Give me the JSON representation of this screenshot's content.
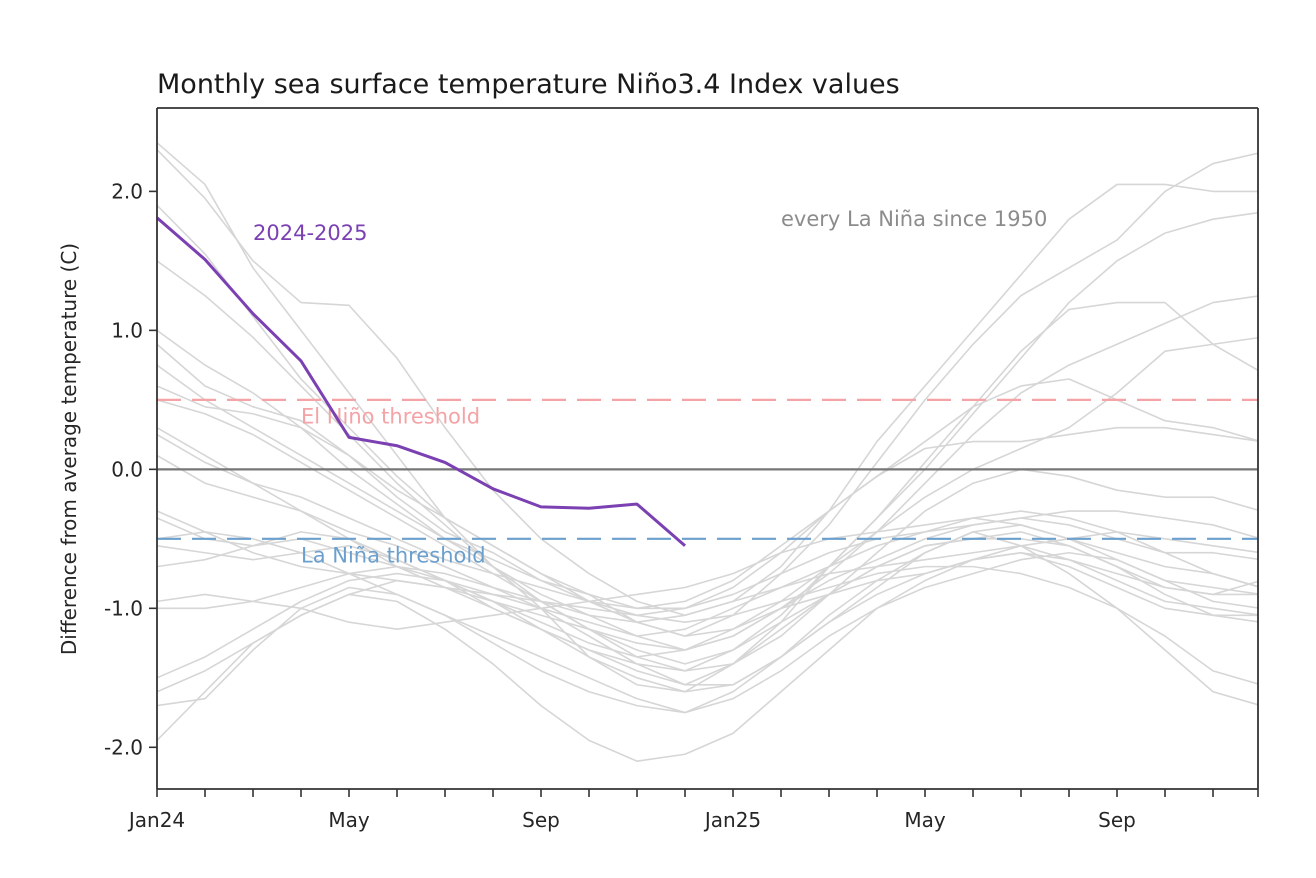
{
  "chart_data": {
    "type": "line",
    "title": "Monthly sea surface temperature Niño3.4 Index values",
    "xlabel": "",
    "ylabel": "Difference from average temperature (C)",
    "x": [
      "Jan24",
      "Feb24",
      "Mar24",
      "Apr24",
      "May24",
      "Jun24",
      "Jul24",
      "Aug24",
      "Sep24",
      "Oct24",
      "Nov24",
      "Dec24",
      "Jan25",
      "Feb25",
      "Mar25",
      "Apr25",
      "May25",
      "Jun25",
      "Jul25",
      "Aug25",
      "Sep25",
      "Oct25",
      "Nov25",
      "Dec25"
    ],
    "xtick_labels": [
      {
        "index": 0,
        "label": "Jan24"
      },
      {
        "index": 4,
        "label": "May"
      },
      {
        "index": 8,
        "label": "Sep"
      },
      {
        "index": 12,
        "label": "Jan25"
      },
      {
        "index": 16,
        "label": "May"
      },
      {
        "index": 20,
        "label": "Sep"
      }
    ],
    "xlim": [
      0,
      23
    ],
    "ylim": [
      -2.3,
      2.6
    ],
    "yticks": [
      {
        "value": 2.0,
        "label": "2.0"
      },
      {
        "value": 1.0,
        "label": "1.0"
      },
      {
        "value": 0.0,
        "label": "0.0"
      },
      {
        "value": -1.0,
        "label": "-1.0"
      },
      {
        "value": -2.0,
        "label": "-2.0"
      }
    ],
    "grid": false,
    "highlight_series": {
      "name": "2024-2025",
      "color": "#7b40b2",
      "values": [
        1.81,
        1.51,
        1.12,
        0.78,
        0.23,
        0.17,
        0.05,
        -0.14,
        -0.27,
        -0.28,
        -0.25,
        -0.55
      ]
    },
    "background_series_label": "every La Niña since 1950",
    "background_series_color": "#d6d6d6",
    "background_series": [
      {
        "name": "event-1",
        "values": [
          2.35,
          2.05,
          1.45,
          1.0,
          0.55,
          0.1,
          -0.35,
          -0.7,
          -1.0,
          -1.35,
          -1.55,
          -1.6,
          -1.4,
          -1.1,
          -0.7,
          -0.35,
          0.0,
          0.4,
          0.8,
          1.2,
          1.5,
          1.7,
          1.8,
          1.85
        ]
      },
      {
        "name": "event-2",
        "values": [
          2.3,
          1.95,
          1.5,
          1.2,
          1.18,
          0.8,
          0.3,
          -0.15,
          -0.5,
          -0.75,
          -0.95,
          -1.05,
          -0.95,
          -0.7,
          -0.3,
          0.2,
          0.6,
          1.0,
          1.4,
          1.8,
          2.05,
          2.05,
          2.0,
          2.0
        ]
      },
      {
        "name": "event-3",
        "values": [
          1.9,
          1.55,
          1.1,
          0.65,
          0.3,
          -0.05,
          -0.35,
          -0.55,
          -0.75,
          -0.95,
          -1.1,
          -1.2,
          -1.05,
          -0.75,
          -0.4,
          0.05,
          0.5,
          0.9,
          1.25,
          1.45,
          1.65,
          2.0,
          2.2,
          2.28
        ]
      },
      {
        "name": "event-4",
        "values": [
          1.5,
          1.25,
          0.95,
          0.6,
          0.25,
          -0.1,
          -0.4,
          -0.7,
          -0.95,
          -1.15,
          -1.3,
          -1.4,
          -1.3,
          -1.05,
          -0.7,
          -0.35,
          0.05,
          0.45,
          0.85,
          1.15,
          1.2,
          1.2,
          0.9,
          0.7
        ]
      },
      {
        "name": "event-5",
        "values": [
          1.0,
          0.75,
          0.55,
          0.3,
          0.0,
          -0.25,
          -0.5,
          -0.7,
          -0.9,
          -1.05,
          -1.2,
          -1.3,
          -1.2,
          -1.0,
          -0.75,
          -0.45,
          -0.1,
          0.25,
          0.55,
          0.75,
          0.9,
          1.05,
          1.2,
          1.25
        ]
      },
      {
        "name": "event-6",
        "values": [
          0.9,
          0.6,
          0.45,
          0.35,
          0.1,
          -0.2,
          -0.45,
          -0.6,
          -0.8,
          -0.95,
          -1.05,
          -1.0,
          -0.85,
          -0.6,
          -0.3,
          -0.05,
          0.2,
          0.45,
          0.6,
          0.65,
          0.5,
          0.35,
          0.3,
          0.2
        ]
      },
      {
        "name": "event-7",
        "values": [
          0.75,
          0.5,
          0.3,
          0.1,
          -0.1,
          -0.3,
          -0.5,
          -0.65,
          -0.8,
          -0.9,
          -1.0,
          -0.95,
          -0.8,
          -0.55,
          -0.3,
          -0.05,
          0.15,
          0.2,
          0.2,
          0.25,
          0.3,
          0.3,
          0.25,
          0.2
        ]
      },
      {
        "name": "event-8",
        "values": [
          0.6,
          0.45,
          0.4,
          0.3,
          0.1,
          -0.15,
          -0.35,
          -0.55,
          -0.75,
          -0.9,
          -1.1,
          -1.2,
          -1.15,
          -0.95,
          -0.7,
          -0.45,
          -0.2,
          0.0,
          0.15,
          0.3,
          0.55,
          0.85,
          0.9,
          0.95
        ]
      },
      {
        "name": "event-9",
        "values": [
          0.5,
          0.4,
          0.25,
          0.05,
          -0.15,
          -0.35,
          -0.55,
          -0.75,
          -0.95,
          -1.15,
          -1.35,
          -1.45,
          -1.4,
          -1.2,
          -0.9,
          -0.6,
          -0.3,
          -0.1,
          0.0,
          -0.05,
          -0.15,
          -0.2,
          -0.2,
          -0.3
        ]
      },
      {
        "name": "event-10",
        "values": [
          0.3,
          0.1,
          -0.1,
          -0.2,
          -0.35,
          -0.5,
          -0.65,
          -0.75,
          -0.85,
          -0.95,
          -1.0,
          -1.0,
          -0.9,
          -0.75,
          -0.6,
          -0.5,
          -0.45,
          -0.4,
          -0.35,
          -0.3,
          -0.3,
          -0.35,
          -0.4,
          -0.5
        ]
      },
      {
        "name": "event-11",
        "values": [
          0.1,
          -0.1,
          -0.2,
          -0.3,
          -0.45,
          -0.55,
          -0.7,
          -0.85,
          -1.0,
          -1.2,
          -1.4,
          -1.55,
          -1.55,
          -1.35,
          -1.1,
          -0.9,
          -0.75,
          -0.65,
          -0.55,
          -0.5,
          -0.45,
          -0.5,
          -0.55,
          -0.6
        ]
      },
      {
        "name": "event-12",
        "values": [
          -0.35,
          -0.5,
          -0.55,
          -0.5,
          -0.6,
          -0.7,
          -0.8,
          -0.9,
          -1.0,
          -1.1,
          -1.2,
          -1.15,
          -1.0,
          -0.85,
          -0.7,
          -0.55,
          -0.45,
          -0.35,
          -0.3,
          -0.35,
          -0.45,
          -0.6,
          -0.75,
          -0.85
        ]
      },
      {
        "name": "event-13",
        "values": [
          -0.55,
          -0.6,
          -0.65,
          -0.6,
          -0.55,
          -0.65,
          -0.8,
          -1.0,
          -1.15,
          -1.3,
          -1.45,
          -1.55,
          -1.4,
          -1.15,
          -0.9,
          -0.7,
          -0.55,
          -0.5,
          -0.45,
          -0.55,
          -0.7,
          -0.85,
          -0.9,
          -0.8
        ]
      },
      {
        "name": "event-14",
        "values": [
          -0.7,
          -0.65,
          -0.55,
          -0.45,
          -0.5,
          -0.65,
          -0.8,
          -0.95,
          -1.1,
          -1.25,
          -1.35,
          -1.3,
          -1.15,
          -1.0,
          -0.9,
          -0.8,
          -0.75,
          -0.65,
          -0.6,
          -0.7,
          -0.85,
          -1.0,
          -1.05,
          -1.05
        ]
      },
      {
        "name": "event-15",
        "values": [
          -0.95,
          -0.9,
          -0.95,
          -0.85,
          -0.75,
          -0.7,
          -0.75,
          -0.85,
          -0.95,
          -1.05,
          -1.1,
          -1.05,
          -0.95,
          -0.85,
          -0.75,
          -0.7,
          -0.65,
          -0.6,
          -0.55,
          -0.65,
          -0.8,
          -0.95,
          -1.0,
          -1.05
        ]
      },
      {
        "name": "event-16",
        "values": [
          -1.0,
          -1.0,
          -0.95,
          -1.0,
          -1.1,
          -1.15,
          -1.1,
          -1.05,
          -1.0,
          -0.95,
          -0.9,
          -0.85,
          -0.75,
          -0.6,
          -0.5,
          -0.45,
          -0.4,
          -0.35,
          -0.4,
          -0.5,
          -0.6,
          -0.7,
          -0.75,
          -0.85
        ]
      },
      {
        "name": "event-17",
        "values": [
          -1.5,
          -1.35,
          -1.15,
          -0.95,
          -0.8,
          -0.75,
          -0.8,
          -0.95,
          -1.15,
          -1.3,
          -1.4,
          -1.45,
          -1.3,
          -1.1,
          -0.9,
          -0.7,
          -0.55,
          -0.5,
          -0.5,
          -0.55,
          -0.7,
          -0.9,
          -1.05,
          -1.1
        ]
      },
      {
        "name": "event-18",
        "values": [
          -1.6,
          -1.45,
          -1.25,
          -1.05,
          -0.9,
          -0.8,
          -0.85,
          -0.95,
          -1.05,
          -1.15,
          -1.25,
          -1.3,
          -1.2,
          -1.0,
          -0.8,
          -0.65,
          -0.5,
          -0.4,
          -0.35,
          -0.4,
          -0.5,
          -0.6,
          -0.6,
          -0.65
        ]
      },
      {
        "name": "event-19",
        "values": [
          -1.7,
          -1.65,
          -1.3,
          -1.0,
          -0.85,
          -0.9,
          -1.05,
          -1.25,
          -1.45,
          -1.6,
          -1.7,
          -1.75,
          -1.6,
          -1.35,
          -1.05,
          -0.8,
          -0.6,
          -0.45,
          -0.4,
          -0.5,
          -0.65,
          -0.8,
          -0.85,
          -0.9
        ]
      },
      {
        "name": "event-20",
        "values": [
          -1.95,
          -1.6,
          -1.25,
          -1.05,
          -0.9,
          -0.95,
          -1.15,
          -1.4,
          -1.7,
          -1.95,
          -2.1,
          -2.05,
          -1.9,
          -1.6,
          -1.3,
          -1.0,
          -0.8,
          -0.65,
          -0.6,
          -0.65,
          -0.75,
          -0.85,
          -0.9,
          -0.9
        ]
      },
      {
        "name": "event-21",
        "values": [
          -0.5,
          -0.45,
          -0.5,
          -0.6,
          -0.75,
          -0.9,
          -1.05,
          -1.2,
          -1.35,
          -1.5,
          -1.65,
          -1.75,
          -1.65,
          -1.45,
          -1.2,
          -1.0,
          -0.85,
          -0.75,
          -0.65,
          -0.6,
          -0.65,
          -0.8,
          -0.95,
          -1.0
        ]
      },
      {
        "name": "event-22",
        "values": [
          0.25,
          0.05,
          -0.1,
          -0.3,
          -0.5,
          -0.7,
          -0.85,
          -1.0,
          -1.15,
          -1.35,
          -1.5,
          -1.6,
          -1.55,
          -1.35,
          -1.1,
          -0.85,
          -0.6,
          -0.45,
          -0.55,
          -0.75,
          -1.0,
          -1.3,
          -1.6,
          -1.7
        ]
      },
      {
        "name": "event-23",
        "values": [
          -0.3,
          -0.45,
          -0.6,
          -0.7,
          -0.75,
          -0.8,
          -0.85,
          -0.9,
          -0.95,
          -1.0,
          -1.05,
          -1.1,
          -1.05,
          -0.95,
          -0.85,
          -0.75,
          -0.7,
          -0.7,
          -0.75,
          -0.85,
          -1.0,
          -1.2,
          -1.45,
          -1.55
        ]
      }
    ],
    "reference_lines": [
      {
        "name": "zero-line",
        "value": 0.0,
        "color": "#777777",
        "style": "solid"
      },
      {
        "name": "el-nino-threshold",
        "value": 0.5,
        "color": "#f4a3a6",
        "style": "dashed",
        "label": "El Niño threshold"
      },
      {
        "name": "la-nina-threshold",
        "value": -0.5,
        "color": "#6b9fce",
        "style": "dashed",
        "label": "La Niña threshold"
      }
    ],
    "annotations": [
      {
        "name": "series-label-2024-2025",
        "text": "2024-2025",
        "color": "#7b40b2",
        "x": 2.0,
        "y": 1.65
      },
      {
        "name": "background-label",
        "text": "every La Niña since 1950",
        "color": "#8c8c8c",
        "x": 13.0,
        "y": 1.75
      },
      {
        "name": "el-nino-label",
        "text": "El Niño threshold",
        "color": "#f4a3a6",
        "x": 3.0,
        "y": 0.33
      },
      {
        "name": "la-nina-label",
        "text": "La Niña threshold",
        "color": "#6b9fce",
        "x": 3.0,
        "y": -0.67
      }
    ],
    "legend": "none"
  }
}
